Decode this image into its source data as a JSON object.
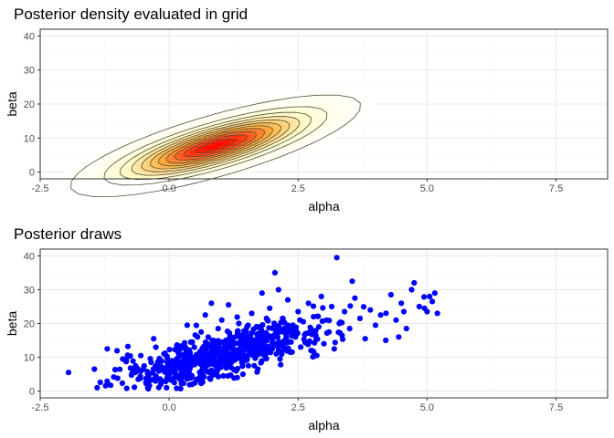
{
  "colors": {
    "panel_border": "#333333",
    "grid_major": "#ebebeb",
    "grid_minor": "#f5f5f5",
    "tick_text": "#4d4d4d",
    "contour": "#4d4d3a",
    "density_low": "#ffffcc",
    "density_high": "#ff0000",
    "points": "#0000ff"
  },
  "chart_data": [
    {
      "type": "heatmap",
      "title": "Posterior density evaluated in grid",
      "xlabel": "alpha",
      "ylabel": "beta",
      "xlim": [
        -2.5,
        8.5
      ],
      "ylim": [
        -2,
        42
      ],
      "x_ticks": [
        -2.5,
        0,
        2.5,
        5,
        7.5
      ],
      "x_tick_labels": [
        "-2.5",
        "0.0",
        "2.5",
        "5.0",
        "7.5"
      ],
      "y_ticks": [
        0,
        10,
        20,
        30,
        40
      ],
      "y_tick_labels": [
        "0",
        "10",
        "20",
        "30",
        "40"
      ],
      "grid": true,
      "density": {
        "mode": [
          0.9,
          7.7
        ],
        "contour_levels": 11,
        "outer_contour_alpha_range": [
          -1.1,
          3.8
        ],
        "outer_contour_beta_range": [
          2.7,
          24
        ]
      }
    },
    {
      "type": "scatter",
      "title": "Posterior draws",
      "xlabel": "alpha",
      "ylabel": "beta",
      "xlim": [
        -2.5,
        8.5
      ],
      "ylim": [
        -2,
        42
      ],
      "x_ticks": [
        -2.5,
        0,
        2.5,
        5,
        7.5
      ],
      "x_tick_labels": [
        "-2.5",
        "0.0",
        "2.5",
        "5.0",
        "7.5"
      ],
      "y_ticks": [
        0,
        10,
        20,
        30,
        40
      ],
      "y_tick_labels": [
        "0",
        "10",
        "20",
        "30",
        "40"
      ],
      "grid": true,
      "points": [
        [
          -1.95,
          5.5
        ],
        [
          -1.45,
          6.5
        ],
        [
          -1.2,
          12.5
        ],
        [
          -1.0,
          3.8
        ],
        [
          -0.9,
          9.5
        ],
        [
          -0.8,
          13.2
        ],
        [
          -0.75,
          6.8
        ],
        [
          -0.6,
          3.5
        ],
        [
          -0.55,
          10.5
        ],
        [
          -0.45,
          2.5
        ],
        [
          -0.4,
          4.5
        ],
        [
          -0.35,
          8.5
        ],
        [
          -0.3,
          15.5
        ],
        [
          -0.2,
          6.0
        ],
        [
          -0.15,
          3.0
        ],
        [
          -0.1,
          11.0
        ],
        [
          -0.05,
          1.0
        ],
        [
          0.0,
          5.5
        ],
        [
          0.05,
          9.0
        ],
        [
          0.1,
          2.5
        ],
        [
          0.15,
          13.5
        ],
        [
          0.2,
          7.0
        ],
        [
          0.25,
          4.0
        ],
        [
          0.3,
          10.5
        ],
        [
          0.35,
          19.5
        ],
        [
          0.4,
          6.5
        ],
        [
          0.45,
          2.0
        ],
        [
          0.5,
          8.0
        ],
        [
          0.55,
          16.0
        ],
        [
          0.6,
          11.5
        ],
        [
          0.65,
          5.0
        ],
        [
          0.7,
          22.5
        ],
        [
          0.75,
          9.5
        ],
        [
          0.8,
          3.5
        ],
        [
          0.85,
          13.0
        ],
        [
          0.9,
          7.5
        ],
        [
          0.95,
          18.5
        ],
        [
          1.0,
          10.0
        ],
        [
          1.05,
          4.5
        ],
        [
          1.1,
          15.0
        ],
        [
          1.15,
          25.5
        ],
        [
          1.2,
          8.5
        ],
        [
          1.25,
          12.0
        ],
        [
          1.3,
          6.0
        ],
        [
          1.35,
          20.0
        ],
        [
          1.4,
          14.0
        ],
        [
          1.45,
          9.0
        ],
        [
          1.5,
          17.5
        ],
        [
          1.55,
          11.0
        ],
        [
          1.6,
          23.0
        ],
        [
          1.65,
          7.5
        ],
        [
          1.7,
          13.5
        ],
        [
          1.75,
          19.0
        ],
        [
          1.8,
          29.0
        ],
        [
          1.85,
          10.5
        ],
        [
          1.9,
          16.5
        ],
        [
          1.95,
          24.5
        ],
        [
          2.0,
          12.5
        ],
        [
          2.05,
          35.0
        ],
        [
          2.1,
          18.0
        ],
        [
          2.15,
          9.5
        ],
        [
          2.2,
          21.5
        ],
        [
          2.25,
          14.5
        ],
        [
          2.3,
          27.0
        ],
        [
          2.35,
          11.5
        ],
        [
          2.4,
          19.5
        ],
        [
          2.45,
          16.0
        ],
        [
          2.5,
          23.5
        ],
        [
          2.55,
          13.0
        ],
        [
          2.6,
          20.5
        ],
        [
          2.65,
          17.0
        ],
        [
          2.7,
          26.0
        ],
        [
          2.75,
          12.0
        ],
        [
          2.8,
          22.0
        ],
        [
          2.85,
          15.5
        ],
        [
          2.9,
          19.0
        ],
        [
          2.95,
          28.0
        ],
        [
          3.0,
          14.0
        ],
        [
          3.05,
          21.0
        ],
        [
          3.1,
          17.5
        ],
        [
          3.15,
          25.0
        ],
        [
          3.2,
          12.5
        ],
        [
          3.25,
          39.5
        ],
        [
          3.3,
          20.0
        ],
        [
          3.35,
          16.5
        ],
        [
          3.4,
          23.5
        ],
        [
          3.5,
          18.5
        ],
        [
          3.6,
          27.5
        ],
        [
          3.7,
          21.5
        ],
        [
          3.8,
          15.5
        ],
        [
          3.9,
          24.0
        ],
        [
          4.0,
          19.5
        ],
        [
          4.1,
          22.5
        ],
        [
          4.2,
          15.0
        ],
        [
          4.3,
          28.5
        ],
        [
          4.4,
          21.0
        ],
        [
          4.45,
          16.0
        ],
        [
          4.5,
          26.0
        ],
        [
          4.55,
          23.5
        ],
        [
          4.6,
          18.5
        ],
        [
          4.7,
          30.0
        ],
        [
          4.75,
          32.0
        ],
        [
          4.85,
          25.0
        ],
        [
          4.95,
          24.5
        ],
        [
          5.0,
          23.5
        ],
        [
          5.05,
          28.0
        ],
        [
          5.1,
          26.5
        ],
        [
          5.15,
          29.0
        ],
        [
          5.2,
          23.0
        ],
        [
          -0.25,
          7.5
        ],
        [
          0.22,
          12.5
        ],
        [
          0.62,
          17.5
        ],
        [
          1.02,
          21.0
        ],
        [
          1.32,
          4.0
        ],
        [
          1.72,
          6.5
        ],
        [
          2.12,
          30.0
        ],
        [
          0.42,
          14.5
        ],
        [
          0.82,
          26.0
        ],
        [
          -0.65,
          7.5
        ],
        [
          3.55,
          32.5
        ]
      ]
    }
  ]
}
